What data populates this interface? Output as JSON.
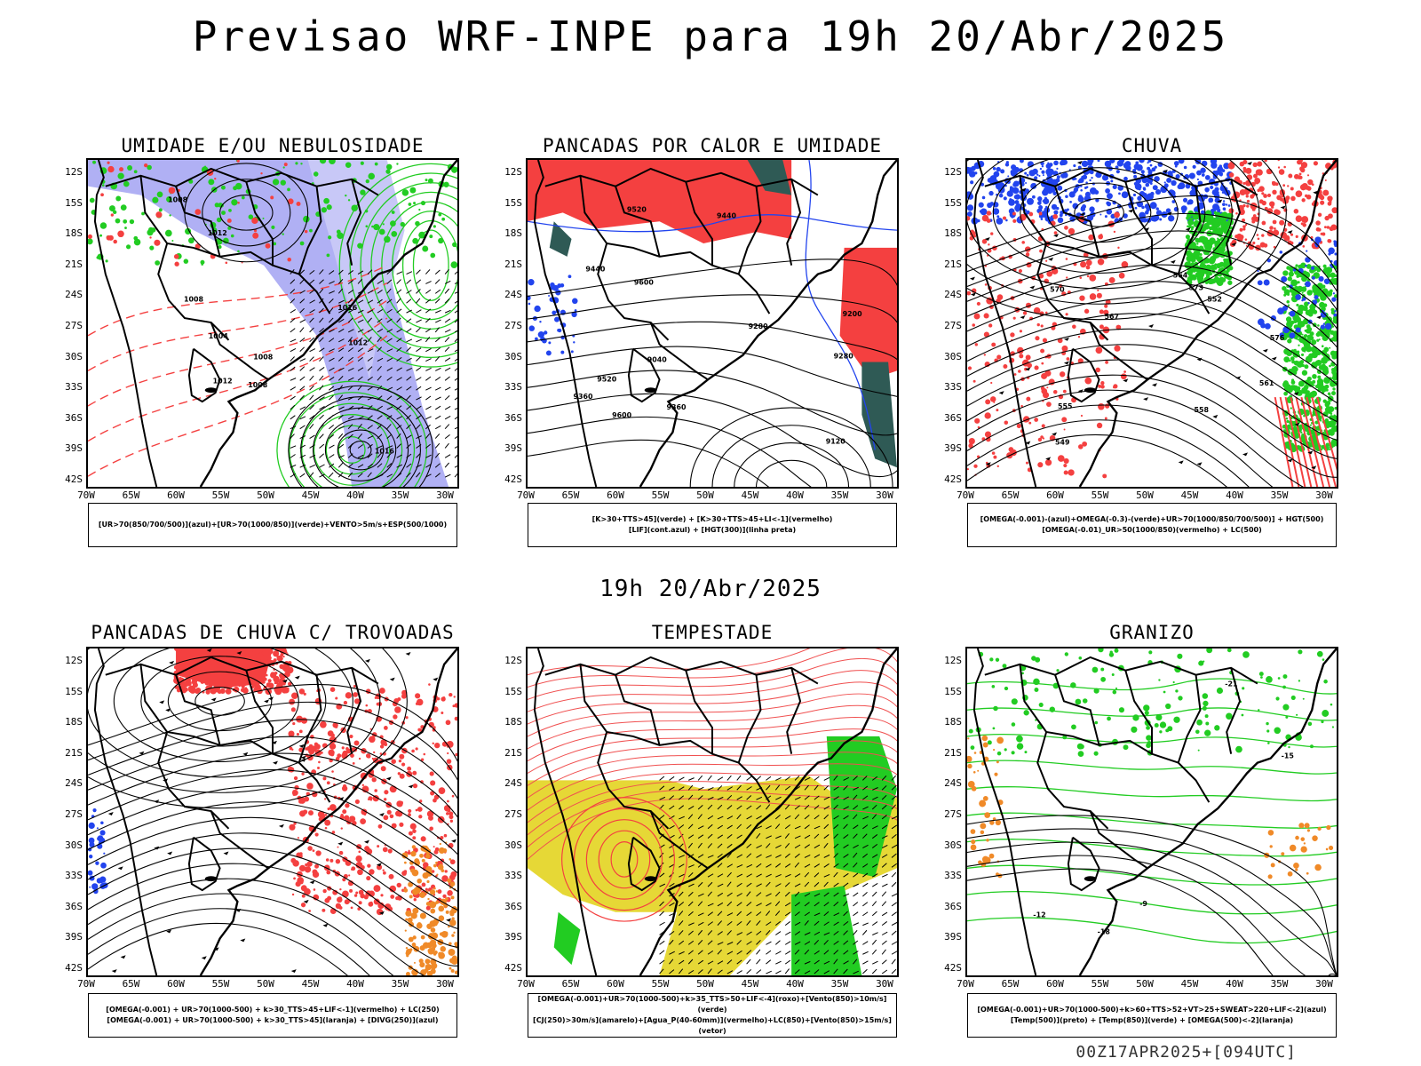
{
  "header": {
    "title": "Previsao WRF-INPE  para 19h 20/Abr/2025",
    "middle_date": "19h 20/Abr/2025",
    "footer": "00Z17APR2025+[094UTC]"
  },
  "axes": {
    "lat_labels": [
      "12S",
      "15S",
      "18S",
      "21S",
      "24S",
      "27S",
      "30S",
      "33S",
      "36S",
      "39S",
      "42S"
    ],
    "lon_labels": [
      "70W",
      "65W",
      "60W",
      "55W",
      "50W",
      "45W",
      "40W",
      "35W",
      "30W"
    ]
  },
  "colors": {
    "red": "#f44040",
    "green": "#22cc22",
    "blue": "#2244ee",
    "lavender": "#b0b0f4",
    "yellow": "#e6d836",
    "orange": "#f08a28",
    "darkteal": "#2f5a55",
    "black": "#000000"
  },
  "panels": [
    {
      "id": "umidade",
      "title": "UMIDADE E/OU NEBULOSIDADE",
      "legend": [
        "[UR>70(850/700/500)](azul)+[UR>70(1000/850)](verde)+VENTO>5m/s+ESP(500/1000)"
      ],
      "contour_labels": [
        "1008",
        "1008",
        "1008",
        "1012",
        "1016",
        "1012",
        "1008",
        "1004",
        "1012",
        "1016"
      ]
    },
    {
      "id": "pancadas-calor",
      "title": "PANCADAS POR CALOR E UMIDADE",
      "legend": [
        "[K>30+TTS>45](verde) + [K>30+TTS>45+LI<-1](vermelho)",
        "[LIF](cont.azul) + [HGT(300)](linha preta)"
      ],
      "contour_labels": [
        "9600",
        "9520",
        "9440",
        "9360",
        "9280",
        "9200",
        "9120",
        "9040",
        "9600",
        "9520",
        "9440",
        "9360",
        "9280"
      ]
    },
    {
      "id": "chuva",
      "title": "CHUVA",
      "legend": [
        "[OMEGA(-0.001)-(azul)+OMEGA(-0.3)-(verde)+UR>70(1000/850/700/500)] + HGT(500)",
        "[OMEGA(-0.01)_UR>50(1000/850)(vermelho) + LC(500)"
      ],
      "contour_labels": [
        "576",
        "573",
        "570",
        "567",
        "564",
        "561",
        "558",
        "555",
        "552",
        "549"
      ]
    },
    {
      "id": "trovoadas",
      "title": "PANCADAS DE CHUVA C/ TROVOADAS",
      "legend": [
        "[OMEGA(-0.001) + UR>70(1000-500) + k>30_TTS>45+LIF<-1](vermelho) + LC(250)",
        "[OMEGA(-0.001) + UR>70(1000-500) + k>30_TTS>45](laranja) + [DIVG(250)](azul)"
      ],
      "contour_labels": []
    },
    {
      "id": "tempestade",
      "title": "TEMPESTADE",
      "legend": [
        "[OMEGA(-0.001)+UR>70(1000-500)+k>35_TTS>50+LIF<-4](roxo)+[Vento(850)>10m/s](verde)",
        "[CJ(250)>30m/s](amarelo)+[Agua_P(40-60mm)](vermelho)+LC(850)+[Vento(850)>15m/s](vetor)"
      ],
      "contour_labels": []
    },
    {
      "id": "granizo",
      "title": "GRANIZO",
      "legend": [
        "[OMEGA(-0.001)+UR>70(1000-500)+k>60+TTS>52+VT>25+SWEAT>220+LIF<-2](azul)",
        "[Temp(500)](preto) + [Temp(850)](verde) + [OMEGA(500)<-2](laranja)"
      ],
      "contour_labels": [
        "-15",
        "-18",
        "-21",
        "-12",
        "-9"
      ]
    }
  ]
}
